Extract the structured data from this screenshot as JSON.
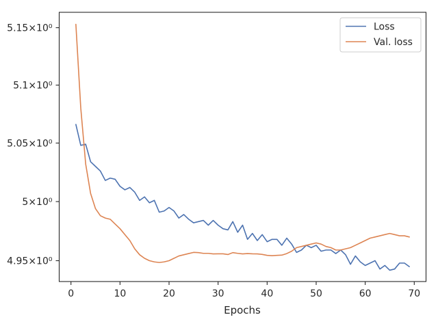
{
  "chart_data": {
    "type": "line",
    "xlabel": "Epochs",
    "ylabel": "",
    "title": "",
    "xlim": [
      -2.4,
      72.4
    ],
    "ylim": [
      4.9325,
      5.1635
    ],
    "yscale": "log",
    "x_ticks": [
      0,
      10,
      20,
      30,
      40,
      50,
      60,
      70
    ],
    "y_ticks": [
      4.95,
      5.0,
      5.05,
      5.1,
      5.15
    ],
    "y_tick_labels": [
      "4.95×10⁰",
      "5×10⁰",
      "5.05×10⁰",
      "5.1×10⁰",
      "5.15×10⁰"
    ],
    "grid": false,
    "legend_position": "top-right",
    "x": [
      1,
      2,
      3,
      4,
      5,
      6,
      7,
      8,
      9,
      10,
      11,
      12,
      13,
      14,
      15,
      16,
      17,
      18,
      19,
      20,
      21,
      22,
      23,
      24,
      25,
      26,
      27,
      28,
      29,
      30,
      31,
      32,
      33,
      34,
      35,
      36,
      37,
      38,
      39,
      40,
      41,
      42,
      43,
      44,
      45,
      46,
      47,
      48,
      49,
      50,
      51,
      52,
      53,
      54,
      55,
      56,
      57,
      58,
      59,
      60,
      61,
      62,
      63,
      64,
      65,
      66,
      67,
      68,
      69
    ],
    "series": [
      {
        "name": "Loss",
        "color": "#4c72b0",
        "values": [
          5.066,
          5.048,
          5.049,
          5.034,
          5.03,
          5.026,
          5.018,
          5.02,
          5.019,
          5.013,
          5.01,
          5.012,
          5.008,
          5.001,
          5.004,
          4.999,
          5.001,
          4.991,
          4.992,
          4.995,
          4.992,
          4.986,
          4.989,
          4.985,
          4.982,
          4.983,
          4.984,
          4.98,
          4.984,
          4.98,
          4.977,
          4.976,
          4.983,
          4.974,
          4.98,
          4.968,
          4.973,
          4.967,
          4.972,
          4.966,
          4.968,
          4.968,
          4.963,
          4.969,
          4.964,
          4.957,
          4.959,
          4.963,
          4.961,
          4.963,
          4.958,
          4.959,
          4.959,
          4.956,
          4.959,
          4.955,
          4.947,
          4.954,
          4.949,
          4.946,
          4.948,
          4.95,
          4.943,
          4.946,
          4.942,
          4.943,
          4.948,
          4.948,
          4.945
        ]
      },
      {
        "name": "Val. loss",
        "color": "#dd8452",
        "values": [
          5.153,
          5.08,
          5.032,
          5.007,
          4.994,
          4.988,
          4.986,
          4.985,
          4.981,
          4.977,
          4.972,
          4.967,
          4.96,
          4.955,
          4.952,
          4.95,
          4.949,
          4.9485,
          4.949,
          4.95,
          4.952,
          4.954,
          4.955,
          4.956,
          4.957,
          4.9568,
          4.9562,
          4.9562,
          4.9557,
          4.9558,
          4.9558,
          4.9552,
          4.9568,
          4.9562,
          4.9557,
          4.956,
          4.9558,
          4.9557,
          4.9553,
          4.9545,
          4.9542,
          4.9545,
          4.9547,
          4.956,
          4.958,
          4.961,
          4.962,
          4.963,
          4.964,
          4.965,
          4.964,
          4.962,
          4.961,
          4.959,
          4.959,
          4.96,
          4.961,
          4.963,
          4.965,
          4.967,
          4.969,
          4.97,
          4.971,
          4.972,
          4.973,
          4.972,
          4.971,
          4.971,
          4.97
        ]
      }
    ]
  }
}
